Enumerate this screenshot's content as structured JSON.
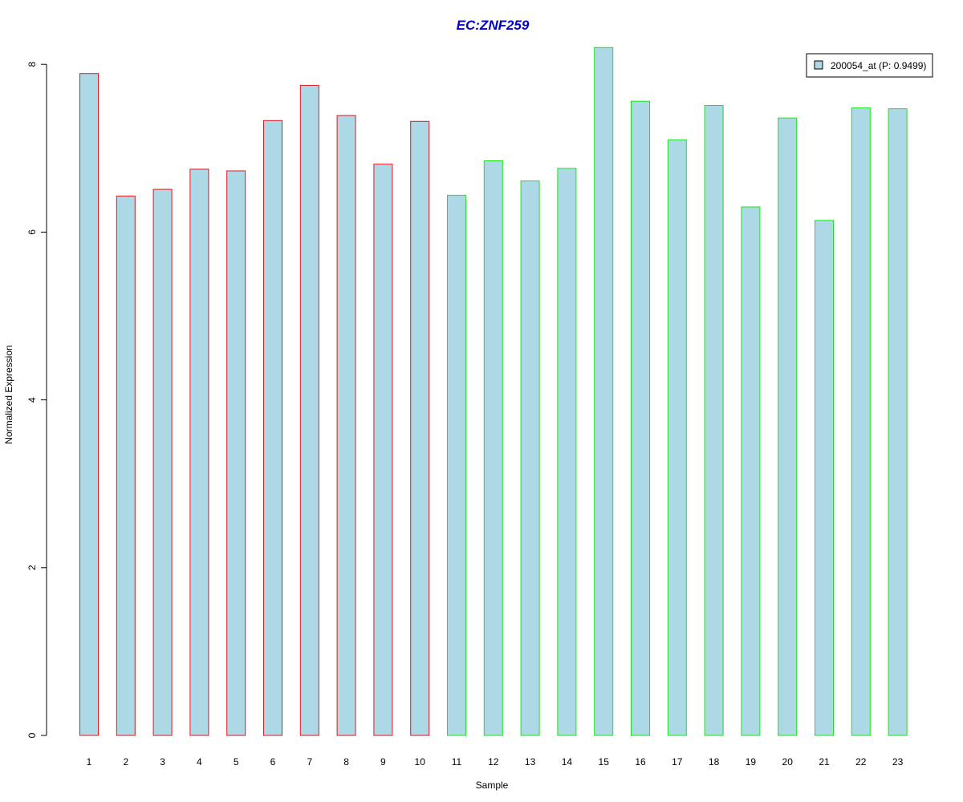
{
  "chart_data": {
    "type": "bar",
    "title": "EC:ZNF259",
    "xlabel": "Sample",
    "ylabel": "Normalized Expression",
    "categories": [
      "1",
      "2",
      "3",
      "4",
      "5",
      "6",
      "7",
      "8",
      "9",
      "10",
      "11",
      "12",
      "13",
      "14",
      "15",
      "16",
      "17",
      "18",
      "19",
      "20",
      "21",
      "22",
      "23"
    ],
    "values": [
      7.89,
      6.43,
      6.51,
      6.75,
      6.73,
      7.33,
      7.75,
      7.39,
      6.81,
      7.32,
      6.44,
      6.85,
      6.61,
      6.76,
      8.2,
      7.56,
      7.1,
      7.51,
      6.3,
      7.36,
      6.14,
      7.48,
      7.47
    ],
    "groups": [
      "a",
      "a",
      "a",
      "a",
      "a",
      "a",
      "a",
      "a",
      "a",
      "a",
      "b",
      "b",
      "b",
      "b",
      "b",
      "b",
      "b",
      "b",
      "b",
      "b",
      "b",
      "b",
      "b"
    ],
    "group_border_colors": {
      "a": "#e8141c",
      "b": "#19e619"
    },
    "bar_fill": "#add8e6",
    "title_color": "#0000cc",
    "yticks": [
      0,
      2,
      4,
      6,
      8
    ],
    "ylim": [
      0,
      8.2
    ],
    "grid": false,
    "legend": {
      "placement": "top-right",
      "entries": [
        {
          "label": "200054_at (P: 0.9499)",
          "color": "#add8e6"
        }
      ]
    }
  }
}
